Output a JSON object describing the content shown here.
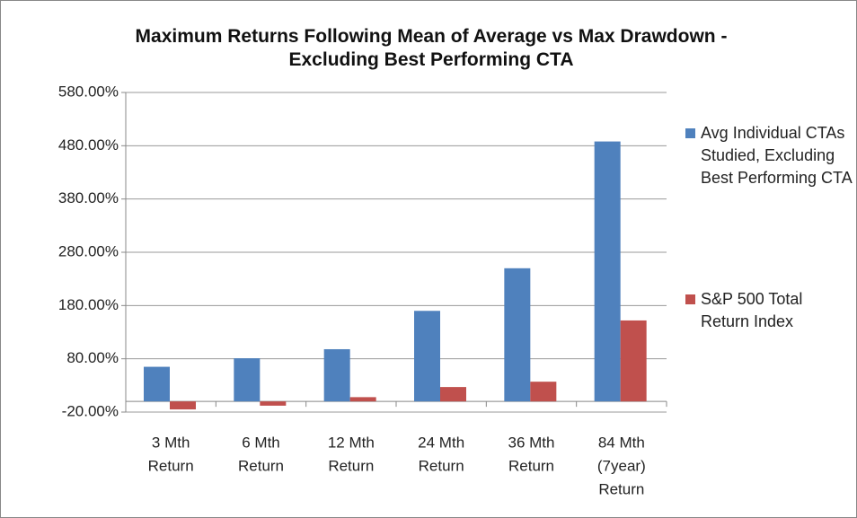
{
  "chart_data": {
    "type": "bar",
    "title": "Maximum Returns Following  Mean of Average vs Max Drawdown - Excluding Best Performing CTA",
    "categories": [
      [
        "3 Mth",
        "Return"
      ],
      [
        "6 Mth",
        "Return"
      ],
      [
        "12 Mth",
        "Return"
      ],
      [
        "24 Mth",
        "Return"
      ],
      [
        "36 Mth",
        "Return"
      ],
      [
        "84 Mth",
        "(7year)",
        "Return"
      ]
    ],
    "series": [
      {
        "name": "Avg Individual CTAs Studied, Excluding Best Performing CTA",
        "color": "#4f81bd",
        "values": [
          65,
          81,
          98,
          170,
          250,
          488
        ]
      },
      {
        "name": "S&P 500 Total Return Index",
        "color": "#c0504d",
        "values": [
          -15,
          -8,
          8,
          27,
          37,
          152
        ]
      }
    ],
    "ylim": [
      -20,
      580
    ],
    "yticks": [
      {
        "value": -20,
        "label": "-20.00%"
      },
      {
        "value": 80,
        "label": "80.00%"
      },
      {
        "value": 180,
        "label": "180.00%"
      },
      {
        "value": 280,
        "label": "280.00%"
      },
      {
        "value": 380,
        "label": "380.00%"
      },
      {
        "value": 480,
        "label": "480.00%"
      },
      {
        "value": 580,
        "label": "580.00%"
      }
    ],
    "grid": true,
    "legend": "right"
  }
}
